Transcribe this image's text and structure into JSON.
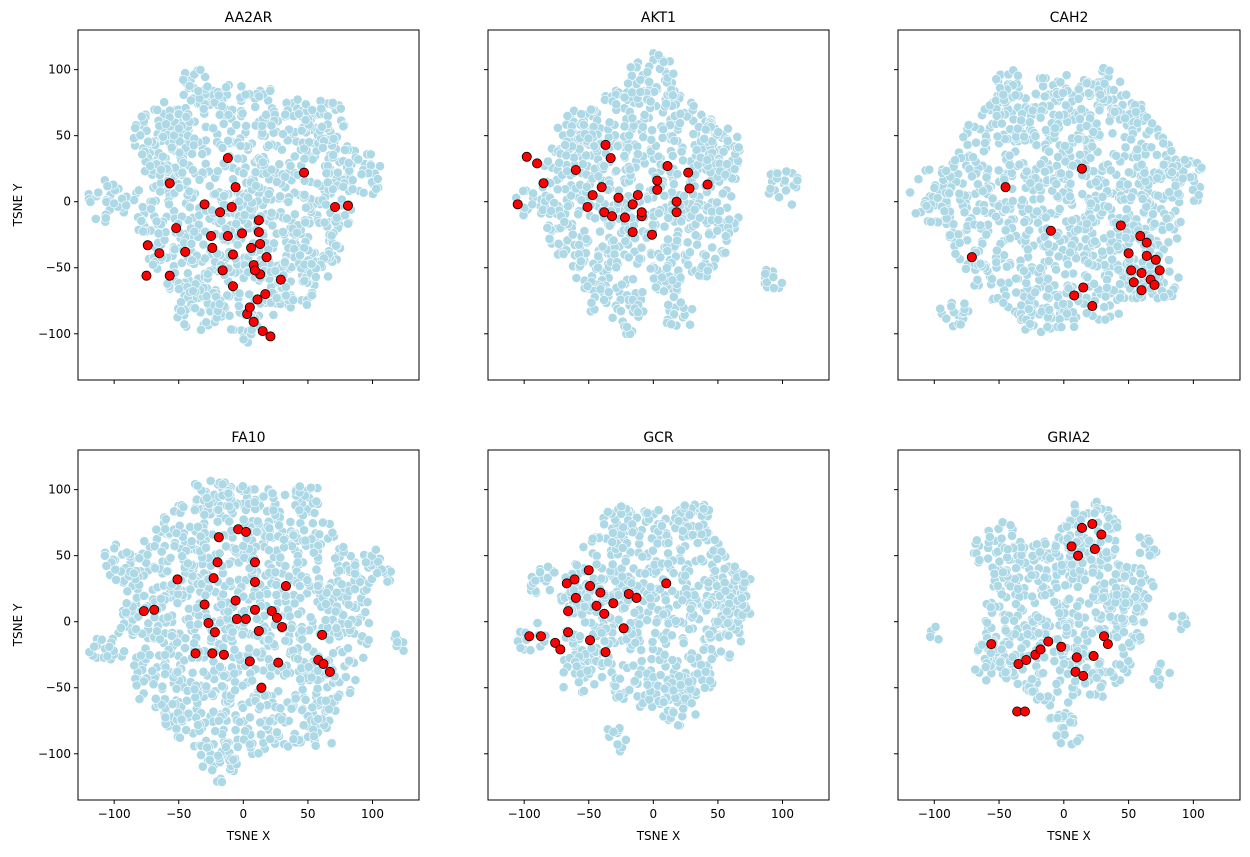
{
  "chart_data": {
    "type": "scatter",
    "xlabel": "TSNE X",
    "ylabel": "TSNE Y",
    "xlim": [
      -128,
      136
    ],
    "ylim": [
      -135,
      130
    ],
    "xticks": [
      -100,
      -50,
      0,
      50,
      100
    ],
    "yticks": [
      -100,
      -50,
      0,
      50,
      100
    ],
    "grid": false,
    "sharex": true,
    "sharey": true,
    "colors": {
      "background_points": "#add8e6",
      "background_edge": "#ffffff",
      "highlight_points": "#ff0000",
      "highlight_edge": "#000000"
    },
    "panels": [
      {
        "title": "AA2AR",
        "background_density_regions": [
          [
            0,
            0,
            85
          ],
          [
            -40,
            90,
            13
          ],
          [
            -105,
            0,
            16
          ],
          [
            85,
            20,
            22
          ],
          [
            -35,
            -80,
            18
          ],
          [
            40,
            -60,
            20
          ],
          [
            60,
            60,
            20
          ],
          [
            -60,
            50,
            25
          ],
          [
            0,
            -95,
            12
          ]
        ],
        "highlight": [
          [
            -12,
            33
          ],
          [
            -57,
            14
          ],
          [
            -6,
            11
          ],
          [
            47,
            22
          ],
          [
            71,
            -4
          ],
          [
            81,
            -3
          ],
          [
            -30,
            -2
          ],
          [
            -9,
            -4
          ],
          [
            -18,
            -8
          ],
          [
            -52,
            -20
          ],
          [
            -74,
            -33
          ],
          [
            -65,
            -39
          ],
          [
            -45,
            -38
          ],
          [
            -57,
            -56
          ],
          [
            -75,
            -56
          ],
          [
            -25,
            -26
          ],
          [
            -24,
            -35
          ],
          [
            -12,
            -26
          ],
          [
            -1,
            -24
          ],
          [
            12,
            -14
          ],
          [
            13,
            -32
          ],
          [
            -8,
            -40
          ],
          [
            -16,
            -52
          ],
          [
            -8,
            -64
          ],
          [
            6,
            -35
          ],
          [
            8,
            -48
          ],
          [
            13,
            -55
          ],
          [
            17,
            -70
          ],
          [
            11,
            -74
          ],
          [
            29,
            -59
          ],
          [
            3,
            -85
          ],
          [
            8,
            -91
          ],
          [
            15,
            -98
          ],
          [
            21,
            -102
          ],
          [
            12,
            -23
          ],
          [
            9,
            -52
          ],
          [
            18,
            -42
          ],
          [
            5,
            -80
          ]
        ]
      },
      {
        "title": "AKT1",
        "background_density_regions": [
          [
            -10,
            5,
            78
          ],
          [
            0,
            92,
            20
          ],
          [
            -100,
            0,
            10
          ],
          [
            100,
            10,
            14
          ],
          [
            90,
            -60,
            10
          ],
          [
            -45,
            -72,
            12
          ],
          [
            -20,
            -88,
            14
          ],
          [
            20,
            -85,
            12
          ],
          [
            -60,
            50,
            18
          ],
          [
            50,
            40,
            20
          ]
        ],
        "highlight": [
          [
            -105,
            -2
          ],
          [
            -98,
            34
          ],
          [
            -90,
            29
          ],
          [
            -85,
            14
          ],
          [
            -60,
            24
          ],
          [
            -37,
            43
          ],
          [
            -33,
            33
          ],
          [
            -40,
            11
          ],
          [
            -47,
            5
          ],
          [
            -51,
            -4
          ],
          [
            -38,
            -8
          ],
          [
            -27,
            3
          ],
          [
            -32,
            -11
          ],
          [
            -22,
            -12
          ],
          [
            -9,
            -11
          ],
          [
            -16,
            -23
          ],
          [
            -16,
            -2
          ],
          [
            -12,
            5
          ],
          [
            -1,
            -25
          ],
          [
            3,
            9
          ],
          [
            3,
            16
          ],
          [
            11,
            27
          ],
          [
            27,
            22
          ],
          [
            28,
            10
          ],
          [
            42,
            13
          ],
          [
            18,
            0
          ],
          [
            18,
            -8
          ],
          [
            -9,
            -8
          ]
        ]
      },
      {
        "title": "CAH2",
        "background_density_regions": [
          [
            0,
            0,
            92
          ],
          [
            -85,
            -85,
            12
          ],
          [
            -100,
            5,
            20
          ],
          [
            -45,
            90,
            12
          ],
          [
            30,
            90,
            14
          ],
          [
            95,
            15,
            16
          ],
          [
            75,
            -60,
            14
          ],
          [
            -20,
            -90,
            12
          ]
        ],
        "highlight": [
          [
            -45,
            11
          ],
          [
            -10,
            -22
          ],
          [
            14,
            25
          ],
          [
            -71,
            -42
          ],
          [
            44,
            -18
          ],
          [
            59,
            -26
          ],
          [
            64,
            -31
          ],
          [
            50,
            -39
          ],
          [
            64,
            -41
          ],
          [
            52,
            -52
          ],
          [
            60,
            -54
          ],
          [
            67,
            -59
          ],
          [
            54,
            -61
          ],
          [
            60,
            -67
          ],
          [
            71,
            -44
          ],
          [
            70,
            -63
          ],
          [
            15,
            -65
          ],
          [
            8,
            -71
          ],
          [
            22,
            -79
          ],
          [
            74,
            -52
          ]
        ]
      },
      {
        "title": "FA10",
        "background_density_regions": [
          [
            0,
            0,
            98
          ],
          [
            -110,
            -20,
            12
          ],
          [
            120,
            -15,
            8
          ],
          [
            -20,
            -108,
            15
          ],
          [
            60,
            -85,
            12
          ],
          [
            -25,
            95,
            16
          ],
          [
            50,
            92,
            12
          ],
          [
            100,
            40,
            16
          ],
          [
            -95,
            45,
            14
          ]
        ],
        "highlight": [
          [
            -4,
            70
          ],
          [
            2,
            68
          ],
          [
            9,
            45
          ],
          [
            -19,
            64
          ],
          [
            -20,
            45
          ],
          [
            -23,
            33
          ],
          [
            -51,
            32
          ],
          [
            -77,
            8
          ],
          [
            -69,
            9
          ],
          [
            -30,
            13
          ],
          [
            -6,
            16
          ],
          [
            -27,
            -1
          ],
          [
            -22,
            -8
          ],
          [
            -37,
            -24
          ],
          [
            -24,
            -24
          ],
          [
            -15,
            -25
          ],
          [
            -5,
            2
          ],
          [
            2,
            2
          ],
          [
            9,
            9
          ],
          [
            12,
            -7
          ],
          [
            5,
            -30
          ],
          [
            22,
            8
          ],
          [
            26,
            3
          ],
          [
            30,
            -4
          ],
          [
            33,
            27
          ],
          [
            27,
            -31
          ],
          [
            14,
            -50
          ],
          [
            61,
            -10
          ],
          [
            58,
            -29
          ],
          [
            62,
            -32
          ],
          [
            67,
            -38
          ],
          [
            9,
            30
          ]
        ]
      },
      {
        "title": "GCR",
        "background_density_regions": [
          [
            0,
            10,
            72
          ],
          [
            -30,
            -90,
            10
          ],
          [
            -95,
            -12,
            12
          ],
          [
            30,
            75,
            16
          ],
          [
            -25,
            75,
            14
          ],
          [
            60,
            20,
            22
          ],
          [
            20,
            -60,
            18
          ],
          [
            -60,
            -40,
            14
          ],
          [
            -85,
            30,
            12
          ]
        ],
        "highlight": [
          [
            -96,
            -11
          ],
          [
            -87,
            -11
          ],
          [
            -76,
            -16
          ],
          [
            -66,
            -8
          ],
          [
            -66,
            8
          ],
          [
            -67,
            29
          ],
          [
            -61,
            32
          ],
          [
            -60,
            18
          ],
          [
            -50,
            39
          ],
          [
            -49,
            27
          ],
          [
            -41,
            22
          ],
          [
            -44,
            12
          ],
          [
            -38,
            6
          ],
          [
            -31,
            14
          ],
          [
            -49,
            -14
          ],
          [
            -37,
            -23
          ],
          [
            -23,
            -5
          ],
          [
            -19,
            21
          ],
          [
            -13,
            18
          ],
          [
            10,
            29
          ],
          [
            -72,
            -21
          ]
        ]
      },
      {
        "title": "GRIA2",
        "background_density_regions": [
          [
            0,
            0,
            62
          ],
          [
            20,
            68,
            24
          ],
          [
            -50,
            55,
            20
          ],
          [
            -100,
            -10,
            6
          ],
          [
            90,
            0,
            8
          ],
          [
            75,
            -40,
            8
          ],
          [
            0,
            -82,
            14
          ],
          [
            50,
            20,
            22
          ],
          [
            -55,
            -30,
            16
          ],
          [
            65,
            60,
            10
          ]
        ],
        "highlight": [
          [
            22,
            74
          ],
          [
            14,
            71
          ],
          [
            6,
            57
          ],
          [
            11,
            50
          ],
          [
            24,
            55
          ],
          [
            29,
            66
          ],
          [
            -56,
            -17
          ],
          [
            -35,
            -32
          ],
          [
            -29,
            -29
          ],
          [
            -22,
            -25
          ],
          [
            -18,
            -21
          ],
          [
            -12,
            -15
          ],
          [
            -2,
            -19
          ],
          [
            10,
            -27
          ],
          [
            23,
            -26
          ],
          [
            31,
            -11
          ],
          [
            34,
            -17
          ],
          [
            9,
            -38
          ],
          [
            15,
            -41
          ],
          [
            -36,
            -68
          ],
          [
            -30,
            -68
          ]
        ]
      }
    ]
  }
}
